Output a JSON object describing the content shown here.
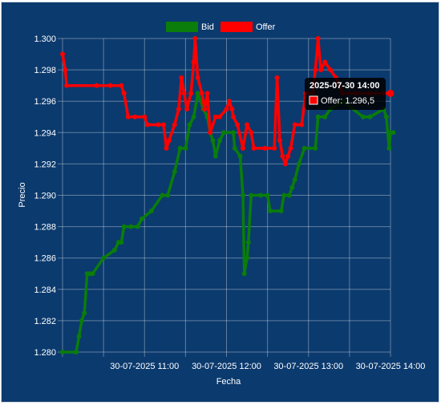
{
  "chart_data": {
    "type": "line",
    "xlabel": "Fecha",
    "ylabel": "Precio",
    "x_ticks": [
      "30-07-2025 11:00",
      "30-07-2025 12:00",
      "30-07-2025 13:00",
      "30-07-2025 14:00"
    ],
    "y_ticks": [
      "1.280",
      "1.282",
      "1.284",
      "1.286",
      "1.288",
      "1.290",
      "1.292",
      "1.294",
      "1.296",
      "1.298",
      "1.300"
    ],
    "xlim": [
      "2025-07-30 10:00",
      "2025-07-30 14:00"
    ],
    "ylim": [
      1.28,
      1.3
    ],
    "grid": true,
    "legend_position": "top-center",
    "series": [
      {
        "name": "Bid",
        "color": "#0a7d0a",
        "points": [
          [
            "10:00",
            1.28
          ],
          [
            "10:10",
            1.28
          ],
          [
            "10:12",
            1.281
          ],
          [
            "10:14",
            1.282
          ],
          [
            "10:16",
            1.2825
          ],
          [
            "10:18",
            1.285
          ],
          [
            "10:20",
            1.285
          ],
          [
            "10:22",
            1.285
          ],
          [
            "10:30",
            1.286
          ],
          [
            "10:38",
            1.2865
          ],
          [
            "10:41",
            1.287
          ],
          [
            "10:43",
            1.287
          ],
          [
            "10:45",
            1.288
          ],
          [
            "10:50",
            1.288
          ],
          [
            "10:55",
            1.288
          ],
          [
            "10:58",
            1.2885
          ],
          [
            "11:05",
            1.289
          ],
          [
            "11:13",
            1.29
          ],
          [
            "11:17",
            1.29
          ],
          [
            "11:22",
            1.2915
          ],
          [
            "11:26",
            1.293
          ],
          [
            "11:30",
            1.293
          ],
          [
            "11:33",
            1.2945
          ],
          [
            "11:36",
            1.295
          ],
          [
            "11:39",
            1.2965
          ],
          [
            "11:43",
            1.2955
          ],
          [
            "11:46",
            1.295
          ],
          [
            "11:48",
            1.294
          ],
          [
            "11:50",
            1.2935
          ],
          [
            "11:52",
            1.2925
          ],
          [
            "11:55",
            1.2935
          ],
          [
            "11:58",
            1.294
          ],
          [
            "12:05",
            1.294
          ],
          [
            "12:06",
            1.293
          ],
          [
            "12:10",
            1.2925
          ],
          [
            "12:12",
            1.29
          ],
          [
            "12:13",
            1.285
          ],
          [
            "12:15",
            1.286
          ],
          [
            "12:16",
            1.287
          ],
          [
            "12:18",
            1.29
          ],
          [
            "12:25",
            1.29
          ],
          [
            "12:30",
            1.29
          ],
          [
            "12:32",
            1.289
          ],
          [
            "12:40",
            1.289
          ],
          [
            "12:42",
            1.29
          ],
          [
            "12:46",
            1.29
          ],
          [
            "12:48",
            1.2905
          ],
          [
            "12:50",
            1.291
          ],
          [
            "12:53",
            1.292
          ],
          [
            "12:57",
            1.293
          ],
          [
            "13:05",
            1.293
          ],
          [
            "13:07",
            1.295
          ],
          [
            "13:12",
            1.295
          ],
          [
            "13:16",
            1.2955
          ],
          [
            "13:25",
            1.296
          ],
          [
            "13:40",
            1.295
          ],
          [
            "13:45",
            1.295
          ],
          [
            "13:55",
            1.2955
          ],
          [
            "13:57",
            1.295
          ],
          [
            "13:59",
            1.293
          ],
          [
            "14:00",
            1.294
          ],
          [
            "14:02",
            1.294
          ]
        ]
      },
      {
        "name": "Offer",
        "color": "#ff0000",
        "points": [
          [
            "10:00",
            1.299
          ],
          [
            "10:02",
            1.298
          ],
          [
            "10:03",
            1.297
          ],
          [
            "10:25",
            1.297
          ],
          [
            "10:35",
            1.297
          ],
          [
            "10:43",
            1.297
          ],
          [
            "10:45",
            1.2965
          ],
          [
            "10:48",
            1.295
          ],
          [
            "10:53",
            1.295
          ],
          [
            "11:00",
            1.295
          ],
          [
            "11:02",
            1.2945
          ],
          [
            "11:10",
            1.2945
          ],
          [
            "11:14",
            1.2945
          ],
          [
            "11:16",
            1.293
          ],
          [
            "11:18",
            1.2935
          ],
          [
            "11:22",
            1.2945
          ],
          [
            "11:25",
            1.2955
          ],
          [
            "11:27",
            1.2975
          ],
          [
            "11:29",
            1.2965
          ],
          [
            "11:31",
            1.2955
          ],
          [
            "11:34",
            1.2965
          ],
          [
            "11:36",
            1.2985
          ],
          [
            "11:37",
            1.3
          ],
          [
            "11:39",
            1.2975
          ],
          [
            "11:42",
            1.2965
          ],
          [
            "11:44",
            1.2955
          ],
          [
            "11:46",
            1.2965
          ],
          [
            "11:48",
            1.294
          ],
          [
            "11:52",
            1.295
          ],
          [
            "11:55",
            1.295
          ],
          [
            "12:00",
            1.2955
          ],
          [
            "12:02",
            1.296
          ],
          [
            "12:04",
            1.2955
          ],
          [
            "12:05",
            1.295
          ],
          [
            "12:08",
            1.2945
          ],
          [
            "12:12",
            1.293
          ],
          [
            "12:15",
            1.2945
          ],
          [
            "12:18",
            1.294
          ],
          [
            "12:20",
            1.293
          ],
          [
            "12:28",
            1.293
          ],
          [
            "12:35",
            1.293
          ],
          [
            "12:37",
            1.2975
          ],
          [
            "12:39",
            1.2935
          ],
          [
            "12:41",
            1.2925
          ],
          [
            "12:43",
            1.292
          ],
          [
            "12:45",
            1.2925
          ],
          [
            "12:47",
            1.293
          ],
          [
            "12:50",
            1.2945
          ],
          [
            "12:55",
            1.2945
          ],
          [
            "12:58",
            1.2965
          ],
          [
            "13:03",
            1.2965
          ],
          [
            "13:05",
            1.298
          ],
          [
            "13:07",
            1.3
          ],
          [
            "13:09",
            1.298
          ],
          [
            "13:12",
            1.2985
          ],
          [
            "13:16",
            1.298
          ],
          [
            "13:20",
            1.2975
          ],
          [
            "13:25",
            1.2965
          ],
          [
            "13:35",
            1.2965
          ],
          [
            "13:45",
            1.2965
          ],
          [
            "13:55",
            1.2965
          ],
          [
            "14:00",
            1.2965
          ]
        ]
      }
    ],
    "tooltip": {
      "title": "2025-07-30 14:00",
      "label": "Offer: 1.296,5",
      "series_color": "#ff0000",
      "anchor_time": "14:00",
      "anchor_value": 1.2965
    }
  }
}
